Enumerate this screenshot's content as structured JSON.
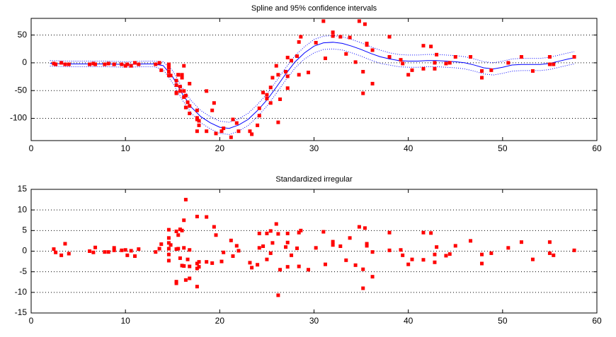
{
  "chart_data": [
    {
      "type": "scatter",
      "title": "Spline and 95% confidence intervals",
      "color": "#ff0000",
      "grid": true,
      "xlim": [
        0,
        60
      ],
      "xticks": [
        0,
        10,
        20,
        30,
        40,
        50,
        60
      ],
      "ylim": [
        -140,
        80
      ],
      "yticks": [
        -100,
        -50,
        0,
        50
      ],
      "x": [
        2.4,
        2.6,
        3.2,
        3.6,
        4.0,
        6.2,
        6.6,
        6.8,
        7.8,
        8.2,
        8.8,
        8.8,
        9.6,
        10.0,
        10.2,
        10.6,
        11.0,
        11.4,
        13.2,
        13.6,
        13.8,
        14.6,
        14.6,
        14.6,
        14.6,
        14.6,
        14.6,
        14.8,
        15.4,
        15.4,
        15.4,
        15.4,
        15.6,
        15.6,
        15.8,
        15.8,
        16.0,
        16.0,
        16.2,
        16.2,
        16.2,
        16.4,
        16.4,
        16.6,
        16.8,
        16.8,
        16.8,
        17.6,
        17.6,
        17.6,
        17.6,
        17.8,
        17.8,
        18.6,
        18.6,
        19.2,
        19.4,
        19.6,
        20.2,
        20.4,
        21.2,
        21.4,
        21.8,
        22.0,
        23.2,
        23.4,
        24.0,
        24.2,
        24.2,
        24.6,
        25.0,
        25.0,
        25.4,
        25.4,
        25.6,
        26.0,
        26.2,
        26.2,
        26.4,
        27.0,
        27.2,
        27.2,
        27.2,
        27.6,
        28.2,
        28.4,
        28.4,
        28.6,
        29.4,
        30.2,
        31.0,
        31.2,
        32.0,
        32.0,
        32.8,
        33.4,
        33.8,
        34.4,
        34.8,
        35.2,
        35.2,
        35.4,
        35.6,
        35.6,
        36.2,
        36.2,
        38.0,
        38.0,
        39.2,
        39.4,
        40.0,
        40.4,
        41.6,
        41.6,
        42.4,
        42.8,
        42.8,
        43.0,
        44.0,
        44.4,
        45.0,
        46.6,
        47.8,
        47.8,
        48.8,
        50.6,
        52.0,
        53.2,
        55.0,
        55.0,
        55.4,
        57.6
      ],
      "values": [
        -1.3,
        -2.7,
        0.0,
        -2.7,
        -2.7,
        -2.7,
        -1.3,
        -2.7,
        -2.7,
        -1.3,
        -2.7,
        -2.7,
        -2.7,
        -5.4,
        -2.7,
        -5.4,
        0.0,
        -2.7,
        -2.7,
        0.0,
        -13.3,
        -5.4,
        -5.4,
        -9.3,
        -16.0,
        -22.8,
        -2.7,
        -22.8,
        -32.1,
        -53.5,
        -54.9,
        -40.2,
        -21.5,
        -21.5,
        -50.8,
        -42.9,
        -26.8,
        -21.5,
        -50.8,
        -61.7,
        -5.4,
        -80.4,
        -59.0,
        -71.0,
        -91.1,
        -77.7,
        -37.5,
        -85.6,
        -123.1,
        -101.9,
        -99.1,
        -104.4,
        -112.5,
        -50.8,
        -123.1,
        -85.6,
        -72.3,
        -127.2,
        -123.1,
        -117.9,
        -134.0,
        -101.9,
        -108.4,
        -123.1,
        -123.1,
        -128.5,
        -112.5,
        -95.1,
        -81.8,
        -53.5,
        -64.4,
        -57.6,
        -72.3,
        -44.3,
        -26.8,
        -5.4,
        -107.1,
        -21.5,
        -65.6,
        -16.0,
        -45.6,
        -24.2,
        9.5,
        4.0,
        12.0,
        -21.5,
        37.5,
        46.9,
        -17.4,
        36.2,
        75.0,
        8.1,
        54.9,
        48.2,
        46.9,
        16.0,
        45.6,
        1.3,
        75.0,
        -16.0,
        -54.9,
        69.6,
        34.8,
        32.1,
        -37.5,
        22.8,
        46.9,
        10.7,
        5.4,
        -1.3,
        -21.5,
        -13.3,
        30.8,
        -10.7,
        29.4,
        0.0,
        -10.7,
        14.7,
        -1.3,
        0.0,
        10.7,
        10.7,
        -26.8,
        -14.7,
        -13.3,
        0.0,
        10.7,
        -14.7,
        -2.7,
        10.7,
        -2.7,
        10.7
      ],
      "lines": {
        "color": "#0000ff",
        "x": [
          2,
          4,
          6,
          8,
          10,
          12,
          13,
          14,
          15,
          16,
          17,
          18,
          19,
          20,
          21,
          22,
          23,
          24,
          25,
          26,
          27,
          28,
          29,
          30,
          31,
          32,
          33,
          34,
          35,
          36,
          37,
          38,
          39,
          40,
          41,
          42,
          43,
          44,
          45,
          46,
          47,
          48,
          49,
          50,
          51,
          52,
          53,
          54,
          55,
          56,
          57,
          57.6
        ],
        "fit": [
          -1,
          -2,
          -2,
          -2,
          -3,
          -2,
          -2,
          -5,
          -25,
          -55,
          -80,
          -97,
          -108,
          -116,
          -118,
          -112,
          -102,
          -86,
          -67,
          -44,
          -20,
          2,
          18,
          30,
          36,
          37,
          35,
          30,
          24,
          17,
          11,
          7,
          4,
          3,
          3,
          4,
          4,
          3,
          2,
          0,
          -4,
          -9,
          -11,
          -8,
          -4,
          -3,
          -3,
          -3,
          -1,
          3,
          7,
          9
        ],
        "upper": [
          4,
          3,
          3,
          3,
          2,
          3,
          3,
          2,
          -14,
          -44,
          -69,
          -86,
          -97,
          -105,
          -107,
          -101,
          -91,
          -75,
          -56,
          -33,
          -9,
          13,
          29,
          42,
          48,
          49,
          47,
          42,
          36,
          29,
          23,
          18,
          15,
          14,
          14,
          15,
          15,
          14,
          13,
          11,
          7,
          2,
          0,
          3,
          7,
          8,
          8,
          8,
          10,
          14,
          18,
          20
        ],
        "lower": [
          -6,
          -7,
          -7,
          -7,
          -8,
          -7,
          -7,
          -12,
          -36,
          -66,
          -91,
          -108,
          -119,
          -127,
          -129,
          -123,
          -113,
          -97,
          -78,
          -55,
          -31,
          -9,
          7,
          18,
          24,
          25,
          23,
          18,
          12,
          5,
          -1,
          -4,
          -7,
          -8,
          -8,
          -7,
          -7,
          -8,
          -9,
          -11,
          -15,
          -20,
          -22,
          -19,
          -15,
          -14,
          -14,
          -14,
          -12,
          -8,
          -4,
          -2
        ]
      }
    },
    {
      "type": "scatter",
      "title": "Standardized irregular",
      "color": "#ff0000",
      "grid": true,
      "xlim": [
        0,
        60
      ],
      "xticks": [
        0,
        10,
        20,
        30,
        40,
        50,
        60
      ],
      "ylim": [
        -15,
        15
      ],
      "yticks": [
        -15,
        -10,
        -5,
        0,
        5,
        10,
        15
      ],
      "x": [
        2.4,
        2.6,
        3.2,
        3.6,
        4.0,
        6.2,
        6.6,
        6.8,
        7.8,
        8.2,
        8.8,
        8.8,
        9.6,
        10.0,
        10.2,
        10.6,
        11.0,
        11.4,
        13.2,
        13.6,
        13.8,
        14.6,
        14.6,
        14.6,
        14.6,
        14.6,
        14.6,
        14.8,
        15.4,
        15.4,
        15.4,
        15.4,
        15.6,
        15.6,
        15.8,
        15.8,
        16.0,
        16.0,
        16.2,
        16.2,
        16.2,
        16.4,
        16.4,
        16.6,
        16.8,
        16.8,
        16.8,
        17.6,
        17.6,
        17.6,
        17.6,
        17.8,
        17.8,
        18.6,
        18.6,
        19.2,
        19.4,
        19.6,
        20.2,
        20.4,
        21.2,
        21.4,
        21.8,
        22.0,
        23.2,
        23.4,
        24.0,
        24.2,
        24.2,
        24.6,
        25.0,
        25.0,
        25.4,
        25.4,
        25.6,
        26.0,
        26.2,
        26.2,
        26.4,
        27.0,
        27.2,
        27.2,
        27.2,
        27.6,
        28.2,
        28.4,
        28.4,
        28.6,
        29.4,
        30.2,
        31.0,
        31.2,
        32.0,
        32.0,
        32.8,
        33.4,
        33.8,
        34.4,
        34.8,
        35.2,
        35.2,
        35.4,
        35.6,
        35.6,
        36.2,
        36.2,
        38.0,
        38.0,
        39.2,
        39.4,
        40.0,
        40.4,
        41.6,
        41.6,
        42.4,
        42.8,
        42.8,
        43.0,
        44.0,
        44.4,
        45.0,
        46.6,
        47.8,
        47.8,
        48.8,
        50.6,
        52.0,
        53.2,
        55.0,
        55.0,
        55.4,
        57.6
      ],
      "values": [
        0.5,
        -0.3,
        -1.0,
        1.8,
        -0.6,
        0.0,
        -0.3,
        0.9,
        -0.2,
        -0.2,
        0.8,
        0.2,
        0.2,
        0.3,
        -1.0,
        0.1,
        -1.2,
        0.5,
        -0.2,
        0.6,
        1.7,
        5.2,
        3.2,
        2.0,
        0.6,
        -0.8,
        -2.3,
        1.5,
        4.8,
        0.5,
        -7.4,
        -7.8,
        3.9,
        0.6,
        5.3,
        -1.7,
        5.0,
        -3.5,
        7.5,
        0.8,
        -3.6,
        12.5,
        -7.0,
        -2.0,
        -6.6,
        -3.7,
        0.3,
        8.4,
        -3.0,
        -8.6,
        -4.2,
        -3.8,
        -2.6,
        8.3,
        -2.6,
        -2.9,
        5.9,
        3.9,
        -2.5,
        -0.3,
        2.6,
        -1.2,
        1.3,
        0.1,
        -2.8,
        -4.0,
        -3.3,
        0.8,
        4.3,
        1.2,
        4.3,
        -2.0,
        -0.5,
        4.9,
        2.0,
        6.6,
        4.2,
        -10.7,
        -4.5,
        1.0,
        4.3,
        -3.8,
        2.1,
        -1.0,
        0.7,
        4.5,
        -3.7,
        5.0,
        -4.5,
        0.8,
        4.7,
        -3.2,
        2.3,
        1.5,
        1.2,
        -2.2,
        3.2,
        -3.4,
        5.9,
        -4.4,
        -9.0,
        5.6,
        1.8,
        1.3,
        -0.2,
        -6.2,
        4.5,
        0.2,
        0.3,
        -1.0,
        -3.2,
        -2.0,
        4.5,
        -2.1,
        4.4,
        -0.8,
        -2.7,
        1.0,
        -1.1,
        -0.7,
        1.3,
        2.5,
        -0.8,
        -3.0,
        -0.5,
        0.8,
        2.2,
        -2.0,
        2.2,
        -0.5,
        -1.0,
        0.2
      ]
    }
  ]
}
